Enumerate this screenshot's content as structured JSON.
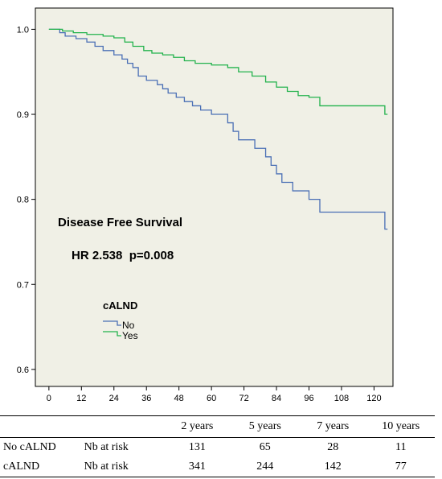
{
  "chart_data": {
    "type": "line",
    "subtype": "kaplan-meier step",
    "title": "Disease Free Survival",
    "annotation": "HR 2.538  p=0.008",
    "xlabel": "",
    "ylabel": "",
    "xlim": [
      -5,
      127
    ],
    "ylim": [
      0.58,
      1.025
    ],
    "xticks": [
      0,
      12,
      24,
      36,
      48,
      60,
      72,
      84,
      96,
      108,
      120
    ],
    "yticks": [
      0.6,
      0.7,
      0.8,
      0.9,
      1.0
    ],
    "ytick_labels": [
      "0.6",
      "0.7",
      "0.8",
      "0.9",
      "1.0"
    ],
    "legend": {
      "title": "cALND",
      "position": "left-middle"
    },
    "grid": false,
    "background": "#f0f0e6",
    "series": [
      {
        "name": "No",
        "color": "#4a6fb5",
        "steps": [
          [
            0,
            1.0
          ],
          [
            4,
            0.996
          ],
          [
            6,
            0.992
          ],
          [
            10,
            0.989
          ],
          [
            14,
            0.985
          ],
          [
            17,
            0.98
          ],
          [
            20,
            0.975
          ],
          [
            24,
            0.97
          ],
          [
            27,
            0.965
          ],
          [
            29,
            0.96
          ],
          [
            31,
            0.955
          ],
          [
            33,
            0.945
          ],
          [
            36,
            0.94
          ],
          [
            40,
            0.935
          ],
          [
            42,
            0.93
          ],
          [
            44,
            0.925
          ],
          [
            47,
            0.92
          ],
          [
            50,
            0.915
          ],
          [
            53,
            0.91
          ],
          [
            56,
            0.905
          ],
          [
            60,
            0.9
          ],
          [
            66,
            0.89
          ],
          [
            68,
            0.88
          ],
          [
            70,
            0.87
          ],
          [
            76,
            0.86
          ],
          [
            80,
            0.85
          ],
          [
            82,
            0.84
          ],
          [
            84,
            0.83
          ],
          [
            86,
            0.82
          ],
          [
            90,
            0.81
          ],
          [
            96,
            0.8
          ],
          [
            100,
            0.785
          ],
          [
            120,
            0.785
          ],
          [
            124,
            0.765
          ],
          [
            125,
            0.765
          ]
        ]
      },
      {
        "name": "Yes",
        "color": "#22b24c",
        "steps": [
          [
            0,
            1.0
          ],
          [
            5,
            0.998
          ],
          [
            9,
            0.996
          ],
          [
            14,
            0.994
          ],
          [
            20,
            0.992
          ],
          [
            24,
            0.99
          ],
          [
            28,
            0.985
          ],
          [
            31,
            0.98
          ],
          [
            35,
            0.975
          ],
          [
            38,
            0.972
          ],
          [
            42,
            0.97
          ],
          [
            46,
            0.967
          ],
          [
            50,
            0.963
          ],
          [
            54,
            0.96
          ],
          [
            60,
            0.958
          ],
          [
            66,
            0.955
          ],
          [
            70,
            0.95
          ],
          [
            75,
            0.945
          ],
          [
            80,
            0.938
          ],
          [
            84,
            0.932
          ],
          [
            88,
            0.927
          ],
          [
            92,
            0.922
          ],
          [
            96,
            0.92
          ],
          [
            100,
            0.91
          ],
          [
            124,
            0.9
          ],
          [
            125,
            0.9
          ]
        ]
      }
    ]
  },
  "risk_table": {
    "header": [
      "",
      "",
      "2 years",
      "5 years",
      "7 years",
      "10 years"
    ],
    "rows": [
      [
        "No cALND",
        "Nb at risk",
        "131",
        "65",
        "28",
        "11"
      ],
      [
        "cALND",
        "Nb at risk",
        "341",
        "244",
        "142",
        "77"
      ]
    ]
  }
}
